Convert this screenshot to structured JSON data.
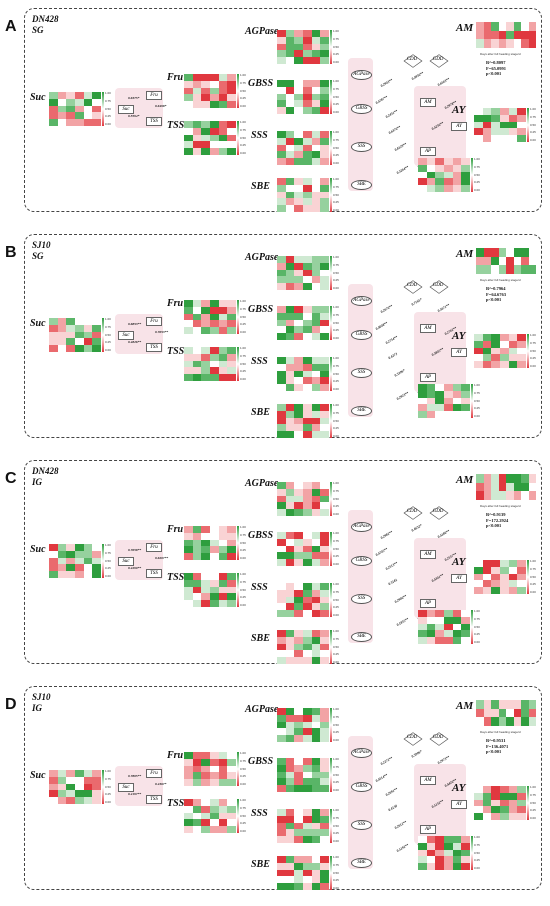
{
  "panels": [
    {
      "letter": "A",
      "title_line1": "DN428",
      "title_line2": "SG",
      "sub_coefs": [
        "0.6375*",
        "0.5594*",
        "0.6498*"
      ],
      "path_coefs": [
        "0.2943**",
        "0.4787**",
        "0.2431**",
        "0.6376**",
        "0.8129**",
        "0.3264**",
        "0.4936**",
        "0.6563**",
        "0.4236**",
        "0.2978**"
      ],
      "stats": {
        "r2": "R²=0.8097",
        "f": "F=65.0991",
        "p": "p<0.001"
      }
    },
    {
      "letter": "B",
      "title_line1": "SJ10",
      "title_line2": "SG",
      "sub_coefs": [
        "0.6853**",
        "0.4826**",
        "0.7653**"
      ],
      "path_coefs": [
        "0.2676**",
        "0.4048**",
        "0.2754**",
        "0.4273",
        "0.3396*",
        "0.2923**",
        "0.7565*",
        "0.5671**",
        "0.3845**",
        "0.2762**"
      ],
      "stats": {
        "r2": "R²=0.7964",
        "f": "F=64.6763",
        "p": "p<0.001"
      }
    },
    {
      "letter": "C",
      "title_line1": "DN428",
      "title_line2": "IG",
      "sub_coefs": [
        "0.7658**",
        "0.4290**",
        "0.6207**"
      ],
      "path_coefs": [
        "0.2982**",
        "0.4745**",
        "0.2513**",
        "0.3181",
        "0.2906**",
        "0.1855**",
        "0.4632*",
        "0.4180**",
        "0.4341**",
        "0.2557**"
      ],
      "stats": {
        "r2": "R²=0.9139",
        "f": "F=172.2924",
        "p": "p<0.001"
      }
    },
    {
      "letter": "D",
      "title_line1": "SJ10",
      "title_line2": "IG",
      "sub_coefs": [
        "0.7805**",
        "0.4197**",
        "0.4367*"
      ],
      "path_coefs": [
        "0.2272**",
        "0.4514**",
        "0.2691**",
        "0.4130",
        "0.2612**",
        "0.5192**",
        "0.3906*",
        "0.2973**",
        "0.5132**",
        "0.4426**"
      ],
      "stats": {
        "r2": "R²=0.9531",
        "f": "F=136.4071",
        "p": "p<0.001"
      }
    }
  ],
  "labels": {
    "suc": "Suc",
    "fru": "Fru",
    "tss": "TSS",
    "agpase": "AGPase",
    "gbss": "GBSS",
    "sss": "SSS",
    "sbe": "SBE",
    "am": "AM",
    "ay": "AY",
    "ap": "AP",
    "cdd": "CDD",
    "gdd": "GDD",
    "ay_box": "AY",
    "sub_suc": "Suc",
    "sub_fru": "Fru",
    "sub_tss": "TSS",
    "days_axis": "Days after full heading stage/d"
  },
  "colorbar_ticks": [
    "1.00",
    "0.75",
    "0.50",
    "0.25",
    "0.00"
  ],
  "colors": {
    "red": "#e0383f",
    "green": "#2e9e3e",
    "pink_bg": "#f8e3e8",
    "line_red": "#d9303a"
  }
}
